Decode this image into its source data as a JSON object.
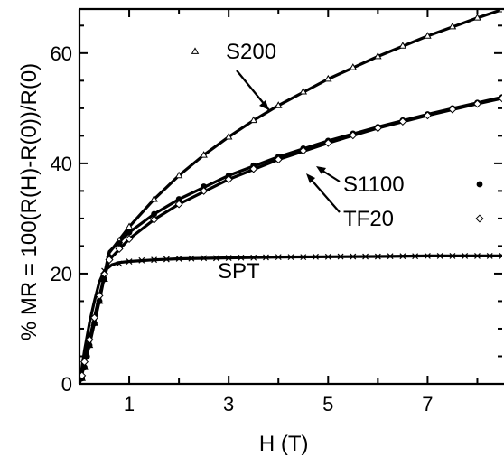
{
  "chart_data": {
    "type": "scatter",
    "xlabel": "H (T)",
    "ylabel": "% MR = 100(R(H)-R(0))/R(0)",
    "xlim": [
      0,
      8.5
    ],
    "ylim": [
      0,
      68
    ],
    "x_ticks": [
      1,
      3,
      5,
      7
    ],
    "y_ticks": [
      0,
      20,
      40,
      60
    ],
    "grid": false,
    "series": [
      {
        "name": "S200",
        "marker": "triangle",
        "x": [
          0.05,
          0.1,
          0.2,
          0.3,
          0.4,
          0.5,
          0.6,
          0.8,
          1.0,
          1.5,
          2.0,
          2.5,
          3.0,
          3.5,
          4.0,
          4.5,
          5.0,
          5.5,
          6.0,
          6.5,
          7.0,
          7.5,
          8.0,
          8.5
        ],
        "y": [
          1,
          3,
          7,
          11,
          15,
          19,
          23,
          26,
          28.5,
          33.5,
          37.8,
          41.5,
          44.8,
          47.8,
          50.5,
          53,
          55.3,
          57.4,
          59.4,
          61.3,
          63.1,
          64.8,
          66.4,
          67.9
        ],
        "fit": [
          [
            0,
            0
          ],
          [
            0.2,
            7
          ],
          [
            0.4,
            15
          ],
          [
            0.6,
            23.8
          ],
          [
            1.0,
            28.5
          ],
          [
            1.5,
            33.5
          ],
          [
            2.0,
            37.8
          ],
          [
            2.5,
            41.5
          ],
          [
            3.0,
            44.8
          ],
          [
            3.5,
            47.8
          ],
          [
            4.0,
            50.5
          ],
          [
            5.0,
            55.3
          ],
          [
            6.0,
            59.4
          ],
          [
            7.0,
            63.1
          ],
          [
            8.0,
            66.4
          ],
          [
            8.5,
            67.9
          ]
        ]
      },
      {
        "name": "S1100",
        "marker": "filled-circle",
        "x": [
          0.05,
          0.1,
          0.15,
          0.2,
          0.3,
          0.4,
          0.5,
          0.6,
          0.8,
          1.0,
          1.5,
          2.0,
          2.5,
          3.0,
          3.5,
          4.0,
          4.5,
          5.0,
          5.5,
          6.0,
          6.5,
          7.0,
          7.5,
          8.0,
          8.5
        ],
        "y": [
          1,
          3,
          5,
          7,
          11,
          15,
          19,
          23,
          25.5,
          27.5,
          30.8,
          33.5,
          35.8,
          37.8,
          39.6,
          41.2,
          42.7,
          44.1,
          45.4,
          46.6,
          47.8,
          48.9,
          50,
          51,
          52
        ],
        "fit": [
          [
            0,
            0
          ],
          [
            0.2,
            7.5
          ],
          [
            0.4,
            15.5
          ],
          [
            0.6,
            24
          ],
          [
            1.0,
            27.5
          ],
          [
            1.5,
            30.8
          ],
          [
            2.0,
            33.5
          ],
          [
            3.0,
            37.8
          ],
          [
            4.0,
            41.2
          ],
          [
            5.0,
            44.1
          ],
          [
            6.0,
            46.6
          ],
          [
            7.0,
            48.9
          ],
          [
            8.0,
            51
          ],
          [
            8.5,
            52
          ]
        ]
      },
      {
        "name": "TF20",
        "marker": "open-diamond",
        "x": [
          0.05,
          0.1,
          0.2,
          0.3,
          0.4,
          0.5,
          0.6,
          0.8,
          1.0,
          1.5,
          2.0,
          2.5,
          3.0,
          3.5,
          4.0,
          4.5,
          5.0,
          5.5,
          6.0,
          6.5,
          7.0,
          7.5,
          8.0,
          8.5
        ],
        "y": [
          1.5,
          4,
          8,
          12,
          16,
          20,
          22.5,
          24.5,
          26.3,
          29.8,
          32.6,
          35,
          37.1,
          39,
          40.7,
          42.3,
          43.7,
          45.1,
          46.4,
          47.6,
          48.7,
          49.8,
          50.8,
          51.8
        ],
        "fit": [
          [
            0,
            0
          ],
          [
            0.2,
            8
          ],
          [
            0.4,
            16
          ],
          [
            0.6,
            22.5
          ],
          [
            1.0,
            26.3
          ],
          [
            1.5,
            29.8
          ],
          [
            2.0,
            32.6
          ],
          [
            3.0,
            37.1
          ],
          [
            4.0,
            40.7
          ],
          [
            5.0,
            43.7
          ],
          [
            6.0,
            46.4
          ],
          [
            7.0,
            48.7
          ],
          [
            8.0,
            50.8
          ],
          [
            8.5,
            51.8
          ]
        ]
      },
      {
        "name": "SPT",
        "marker": "cross",
        "x": [
          0.5,
          0.8,
          1.0,
          1.25,
          1.5,
          1.75,
          2.0,
          2.25,
          2.5,
          2.75,
          3.0,
          3.25,
          3.5,
          3.75,
          4.0,
          4.25,
          4.5,
          4.75,
          5.0,
          5.25,
          5.5,
          5.75,
          6.0,
          6.25,
          6.5,
          6.75,
          7.0,
          7.25,
          7.5,
          7.75,
          8.0,
          8.25,
          8.5
        ],
        "y": [
          20.5,
          21.8,
          22.2,
          22.4,
          22.5,
          22.6,
          22.7,
          22.75,
          22.8,
          22.8,
          22.85,
          22.9,
          22.9,
          22.95,
          23,
          23,
          23,
          23.05,
          23.05,
          23.1,
          23.1,
          23.1,
          23.1,
          23.15,
          23.15,
          23.15,
          23.2,
          23.2,
          23.2,
          23.2,
          23.2,
          23.2,
          23.2
        ],
        "fit": [
          [
            0,
            0
          ],
          [
            0.1,
            6
          ],
          [
            0.2,
            11
          ],
          [
            0.3,
            15
          ],
          [
            0.4,
            18.5
          ],
          [
            0.5,
            20.5
          ],
          [
            0.65,
            21.6
          ],
          [
            0.8,
            22
          ],
          [
            1.0,
            22.2
          ],
          [
            1.5,
            22.5
          ],
          [
            2.0,
            22.7
          ],
          [
            3.0,
            22.85
          ],
          [
            4.0,
            23
          ],
          [
            5.0,
            23.05
          ],
          [
            6.0,
            23.1
          ],
          [
            7.0,
            23.2
          ],
          [
            8.5,
            23.2
          ]
        ]
      }
    ]
  }
}
